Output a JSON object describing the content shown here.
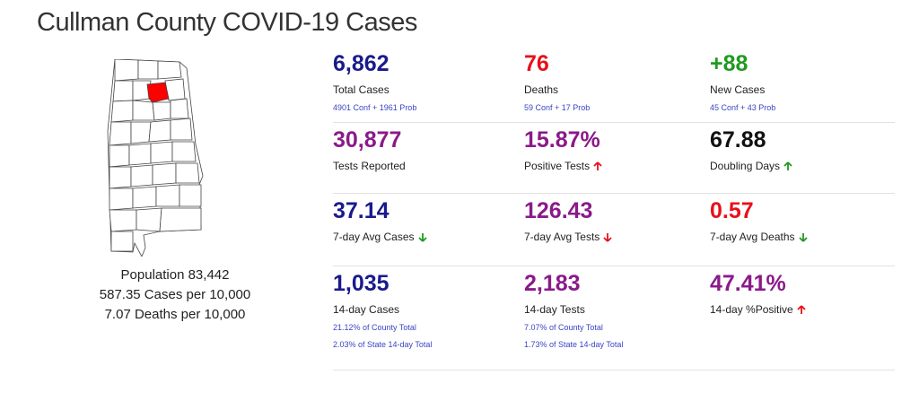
{
  "title": "Cullman County COVID-19 Cases",
  "population": {
    "line1": "Population 83,442",
    "line2": "587.35 Cases per 10,000",
    "line3": "7.07 Deaths per 10,000"
  },
  "colors": {
    "navy": "#1a1a8c",
    "red": "#e8101a",
    "green": "#1f9a1f",
    "purple": "#8a1a8a",
    "black": "#111111",
    "link": "#3a45c4",
    "county_highlight": "#ff0000"
  },
  "stats": {
    "total_cases": {
      "value": "6,862",
      "label": "Total Cases",
      "note": "4901 Conf + 1961 Prob"
    },
    "deaths": {
      "value": "76",
      "label": "Deaths",
      "note": "59 Conf + 17 Prob"
    },
    "new_cases": {
      "value": "+88",
      "label": "New Cases",
      "note": "45 Conf + 43 Prob"
    },
    "tests_reported": {
      "value": "30,877",
      "label": "Tests Reported"
    },
    "positive_tests": {
      "value": "15.87%",
      "label": "Positive Tests",
      "trend": "up-red"
    },
    "doubling_days": {
      "value": "67.88",
      "label": "Doubling Days",
      "trend": "up-green"
    },
    "avg_cases": {
      "value": "37.14",
      "label": "7-day Avg Cases",
      "trend": "down-green"
    },
    "avg_tests": {
      "value": "126.43",
      "label": "7-day Avg Tests",
      "trend": "down-red"
    },
    "avg_deaths": {
      "value": "0.57",
      "label": "7-day Avg Deaths",
      "trend": "down-green"
    },
    "cases_14": {
      "value": "1,035",
      "label": "14-day Cases",
      "note1": "21.12% of County Total",
      "note2": "2.03% of State 14-day Total"
    },
    "tests_14": {
      "value": "2,183",
      "label": "14-day Tests",
      "note1": "7.07% of County Total",
      "note2": "1.73% of State 14-day Total"
    },
    "positive_14": {
      "value": "47.41%",
      "label": "14-day %Positive",
      "trend": "up-red"
    }
  }
}
